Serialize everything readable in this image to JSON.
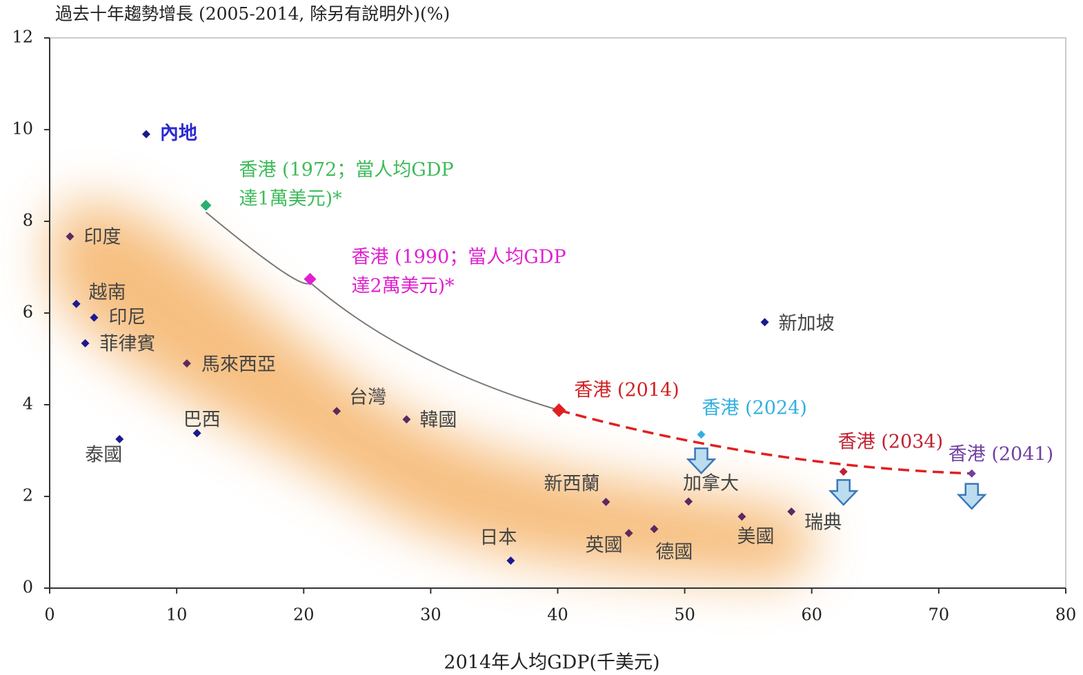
{
  "chart_data": {
    "type": "scatter",
    "title": "過去十年趨勢增長 (2005-2014, 除另有說明外)(%)",
    "x_label": "2014年人均GDP(千美元)",
    "xlim": [
      0,
      80
    ],
    "xticks": [
      0,
      10,
      20,
      30,
      40,
      50,
      60,
      70,
      80
    ],
    "ylim": [
      0,
      12
    ],
    "yticks": [
      0,
      2,
      4,
      6,
      8,
      10,
      12
    ],
    "points": [
      {
        "label": [
          "內地"
        ],
        "x": 7.6,
        "y": 9.9,
        "color": "#1a1a90",
        "label_color": "#2a2ad0"
      },
      {
        "label": [
          "香港 (1972；當人均GDP",
          "達1萬美元)*"
        ],
        "x": 12.3,
        "y": 8.35,
        "color": "#2ab070",
        "label_color": "#3dbb5a"
      },
      {
        "label": [
          "印度"
        ],
        "x": 1.6,
        "y": 7.67,
        "color": "#5a2a60",
        "label_color": "#444444"
      },
      {
        "label": [
          "香港 (1990；當人均GDP",
          "達2萬美元)*"
        ],
        "x": 20.5,
        "y": 6.74,
        "color": "#e020d0",
        "label_color": "#e020d0"
      },
      {
        "label": [
          "越南"
        ],
        "x": 2.1,
        "y": 6.2,
        "color": "#1a1a90",
        "label_color": "#444444"
      },
      {
        "label": [
          "印尼"
        ],
        "x": 3.5,
        "y": 5.9,
        "color": "#1a1a90",
        "label_color": "#444444"
      },
      {
        "label": [
          "菲律賓"
        ],
        "x": 2.8,
        "y": 5.34,
        "color": "#1a1a90",
        "label_color": "#444444"
      },
      {
        "label": [
          "馬來西亞"
        ],
        "x": 10.8,
        "y": 4.9,
        "color": "#5a2a60",
        "label_color": "#444444"
      },
      {
        "label": [
          "新加坡"
        ],
        "x": 56.3,
        "y": 5.8,
        "color": "#1a1a90",
        "label_color": "#444444"
      },
      {
        "label": [
          "台灣"
        ],
        "x": 22.6,
        "y": 3.86,
        "color": "#5a2a60",
        "label_color": "#444444"
      },
      {
        "label": [
          "韓國"
        ],
        "x": 28.1,
        "y": 3.68,
        "color": "#5a2a60",
        "label_color": "#444444"
      },
      {
        "label": [
          "香港 (2014)"
        ],
        "x": 40.1,
        "y": 3.88,
        "color": "#e02020",
        "label_color": "#d02020"
      },
      {
        "label": [
          "巴西"
        ],
        "x": 11.6,
        "y": 3.38,
        "color": "#1a1a90",
        "label_color": "#444444"
      },
      {
        "label": [
          "泰國"
        ],
        "x": 5.5,
        "y": 3.25,
        "color": "#1a1a90",
        "label_color": "#444444"
      },
      {
        "label": [
          "香港 (2024)"
        ],
        "x": 51.3,
        "y": 3.35,
        "color": "#30b0e0",
        "label_color": "#30b0e0"
      },
      {
        "label": [
          "香港 (2034)"
        ],
        "x": 62.5,
        "y": 2.54,
        "color": "#c02030",
        "label_color": "#c02030"
      },
      {
        "label": [
          "香港 (2041)"
        ],
        "x": 72.6,
        "y": 2.5,
        "color": "#7040a0",
        "label_color": "#7040a0"
      },
      {
        "label": [
          "新西蘭"
        ],
        "x": 43.8,
        "y": 1.88,
        "color": "#5a2a60",
        "label_color": "#444444"
      },
      {
        "label": [
          "加拿大"
        ],
        "x": 50.3,
        "y": 1.89,
        "color": "#5a2a60",
        "label_color": "#444444"
      },
      {
        "label": [
          "美國"
        ],
        "x": 54.5,
        "y": 1.56,
        "color": "#5a2a60",
        "label_color": "#444444"
      },
      {
        "label": [
          "瑞典"
        ],
        "x": 58.4,
        "y": 1.67,
        "color": "#5a2a60",
        "label_color": "#444444"
      },
      {
        "label": [
          "英國"
        ],
        "x": 45.6,
        "y": 1.2,
        "color": "#5a2a60",
        "label_color": "#444444"
      },
      {
        "label": [
          "德國"
        ],
        "x": 47.6,
        "y": 1.29,
        "color": "#5a2a60",
        "label_color": "#444444"
      },
      {
        "label": [
          "日本"
        ],
        "x": 36.3,
        "y": 0.6,
        "color": "#1a1a90",
        "label_color": "#444444"
      }
    ]
  }
}
